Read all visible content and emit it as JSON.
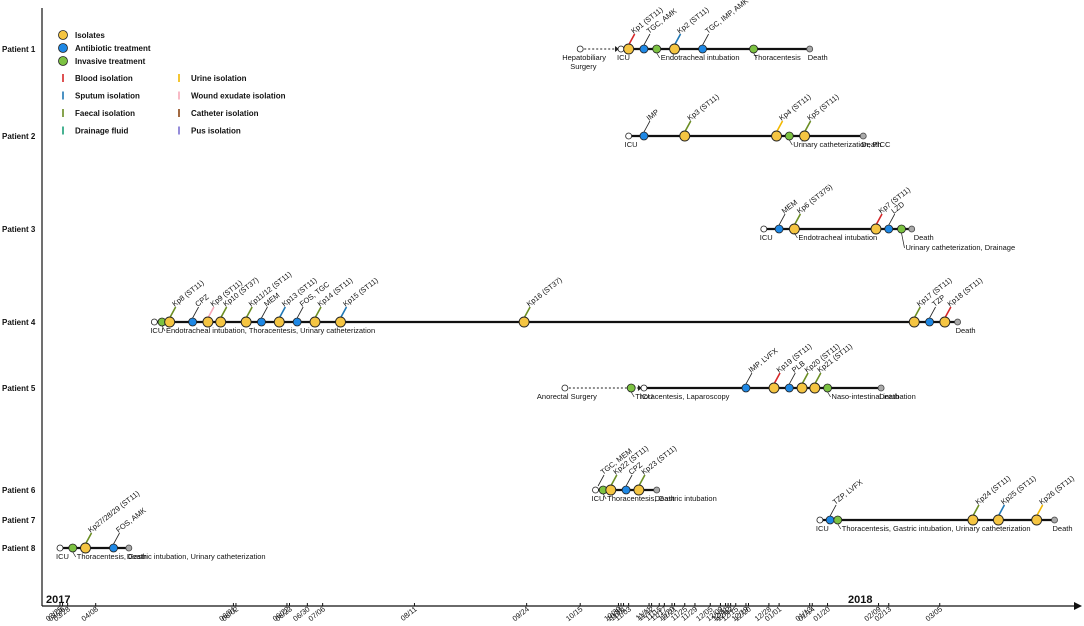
{
  "years": [
    "2017",
    "2018"
  ],
  "axis_dates": [
    {
      "d": "03/25",
      "v": 0
    },
    {
      "d": "03/26",
      "v": 1
    },
    {
      "d": "03/28",
      "v": 3
    },
    {
      "d": "04/08",
      "v": 14
    },
    {
      "d": "06/01",
      "v": 68
    },
    {
      "d": "06/02",
      "v": 69
    },
    {
      "d": "06/22",
      "v": 89
    },
    {
      "d": "06/23",
      "v": 90
    },
    {
      "d": "06/30",
      "v": 97
    },
    {
      "d": "07/06",
      "v": 103
    },
    {
      "d": "08/11",
      "v": 139
    },
    {
      "d": "09/24",
      "v": 183
    },
    {
      "d": "10/15",
      "v": 204
    },
    {
      "d": "10/31",
      "v": 220
    },
    {
      "d": "10/30",
      "v": 219
    },
    {
      "d": "11/01",
      "v": 221
    },
    {
      "d": "11/03",
      "v": 223
    },
    {
      "d": "11/11",
      "v": 231
    },
    {
      "d": "11/12",
      "v": 232
    },
    {
      "d": "11/15",
      "v": 235
    },
    {
      "d": "11/17",
      "v": 237
    },
    {
      "d": "11/20",
      "v": 240
    },
    {
      "d": "11/21",
      "v": 241
    },
    {
      "d": "11/25",
      "v": 245
    },
    {
      "d": "11/29",
      "v": 249
    },
    {
      "d": "12/05",
      "v": 255
    },
    {
      "d": "12/09",
      "v": 259
    },
    {
      "d": "12/11",
      "v": 261
    },
    {
      "d": "12/12",
      "v": 262
    },
    {
      "d": "12/13",
      "v": 263
    },
    {
      "d": "12/15",
      "v": 265
    },
    {
      "d": "12/19",
      "v": 269
    },
    {
      "d": "12/20",
      "v": 270
    },
    {
      "d": "12/28",
      "v": 278
    },
    {
      "d": "01/01",
      "v": 282
    },
    {
      "d": "01/13",
      "v": 294
    },
    {
      "d": "01/14",
      "v": 295
    },
    {
      "d": "01/20",
      "v": 301
    },
    {
      "d": "02/09",
      "v": 321
    },
    {
      "d": "02/13",
      "v": 325
    },
    {
      "d": "03/05",
      "v": 345
    }
  ],
  "legend": {
    "isolates": "Isolates",
    "antibiotic": "Antibiotic treatment",
    "invasive": "Invasive treatment",
    "sources": [
      {
        "label": "Blood isolation",
        "color": "#d62728"
      },
      {
        "label": "Urine isolation",
        "color": "#f2b800"
      },
      {
        "label": "Sputum isolation",
        "color": "#1f77b4"
      },
      {
        "label": "Wound exudate isolation",
        "color": "#f7a8b8"
      },
      {
        "label": "Faecal isolation",
        "color": "#6b8e23"
      },
      {
        "label": "Catheter isolation",
        "color": "#8b4513"
      },
      {
        "label": "Drainage fluid",
        "color": "#1a9e77"
      },
      {
        "label": "Pus isolation",
        "color": "#7b6fd0"
      }
    ]
  },
  "colors": {
    "isolate": "#f5c542",
    "antibiotic": "#1e88e5",
    "invasive": "#7cc242",
    "death": "#aaaaaa"
  },
  "patients": [
    {
      "name": "Patient 1",
      "events": [
        {
          "t": "open",
          "v": 204
        },
        {
          "t": "open",
          "v": 220
        },
        {
          "t": "iso",
          "v": 223
        },
        {
          "t": "abx",
          "v": 229
        },
        {
          "t": "inv",
          "v": 234
        },
        {
          "t": "iso",
          "v": 241
        },
        {
          "t": "abx",
          "v": 252
        },
        {
          "t": "inv",
          "v": 272
        },
        {
          "t": "death",
          "v": 294
        }
      ],
      "labels": [
        {
          "text": "Kp1 (ST11)",
          "v": 223,
          "c": "#d62728"
        },
        {
          "text": "TGC, AMK",
          "v": 229
        },
        {
          "text": "Kp2 (ST11)",
          "v": 241,
          "c": "#1f77b4"
        },
        {
          "text": "TGC, IMP, AMK",
          "v": 252
        }
      ],
      "below": [
        {
          "text": "Hepatobiliary",
          "v": 204,
          "dx": -18
        },
        {
          "text": "Surgery",
          "v": 204,
          "dx": -10,
          "dy": 9
        },
        {
          "text": "ICU",
          "v": 220,
          "dx": -4
        },
        {
          "text": "Endotracheal intubation",
          "v": 234,
          "dx": 4,
          "line": true
        },
        {
          "text": "Thoracentesis",
          "v": 272,
          "dx": 0,
          "line": true
        },
        {
          "text": "Death",
          "v": 294,
          "dx": -2
        }
      ]
    },
    {
      "name": "Patient 2",
      "events": [
        {
          "t": "open",
          "v": 223
        },
        {
          "t": "abx",
          "v": 229
        },
        {
          "t": "iso",
          "v": 245
        },
        {
          "t": "iso",
          "v": 281
        },
        {
          "t": "inv",
          "v": 286
        },
        {
          "t": "iso",
          "v": 292
        },
        {
          "t": "death",
          "v": 315
        }
      ],
      "labels": [
        {
          "text": "IMP",
          "v": 229
        },
        {
          "text": "Kp3 (ST11)",
          "v": 245,
          "c": "#6b8e23"
        },
        {
          "text": "Kp4 (ST11)",
          "v": 281,
          "c": "#f2b800"
        },
        {
          "text": "Kp5 (ST11)",
          "v": 292,
          "c": "#6b8e23"
        }
      ],
      "below": [
        {
          "text": "ICU",
          "v": 223,
          "dx": -4
        },
        {
          "text": "Urinary catheterization, PICC",
          "v": 286,
          "dx": 4,
          "line": true
        },
        {
          "text": "Death",
          "v": 315,
          "dx": -2
        }
      ]
    },
    {
      "name": "Patient 3",
      "events": [
        {
          "t": "open",
          "v": 276
        },
        {
          "t": "abx",
          "v": 282
        },
        {
          "t": "iso",
          "v": 288
        },
        {
          "t": "iso",
          "v": 320
        },
        {
          "t": "abx",
          "v": 325
        },
        {
          "t": "inv",
          "v": 330
        },
        {
          "t": "death",
          "v": 334
        }
      ],
      "labels": [
        {
          "text": "MEM",
          "v": 282
        },
        {
          "text": "Kp6 (ST375)",
          "v": 288,
          "c": "#6b8e23"
        },
        {
          "text": "Kp7 (ST11)",
          "v": 320,
          "c": "#d62728"
        },
        {
          "text": "LZD",
          "v": 325
        }
      ],
      "below": [
        {
          "text": "ICU",
          "v": 276,
          "dx": -4
        },
        {
          "text": "Endotracheal intubation",
          "v": 288,
          "dx": 4,
          "line": true
        },
        {
          "text": "Death",
          "v": 334,
          "dx": 2
        },
        {
          "text": "Urinary catheterization, Drainage",
          "v": 330,
          "dx": 4,
          "dy": 10,
          "line": true
        }
      ]
    },
    {
      "name": "Patient 4",
      "events": [
        {
          "t": "open",
          "v": 37
        },
        {
          "t": "inv",
          "v": 40
        },
        {
          "t": "iso",
          "v": 43
        },
        {
          "t": "abx",
          "v": 52
        },
        {
          "t": "iso",
          "v": 58
        },
        {
          "t": "iso",
          "v": 63
        },
        {
          "t": "iso",
          "v": 73
        },
        {
          "t": "abx",
          "v": 79
        },
        {
          "t": "iso",
          "v": 86
        },
        {
          "t": "abx",
          "v": 93
        },
        {
          "t": "iso",
          "v": 100
        },
        {
          "t": "iso",
          "v": 110
        },
        {
          "t": "iso",
          "v": 182
        },
        {
          "t": "iso",
          "v": 335
        },
        {
          "t": "abx",
          "v": 341
        },
        {
          "t": "iso",
          "v": 347
        },
        {
          "t": "death",
          "v": 352
        }
      ],
      "labels": [
        {
          "text": "Kp8 (ST11)",
          "v": 43,
          "c": "#6b8e23"
        },
        {
          "text": "CPZ",
          "v": 52
        },
        {
          "text": "Kp9 (ST11)",
          "v": 58,
          "c": "#f7a8b8"
        },
        {
          "text": "Kp10 (ST37)",
          "v": 63,
          "c": "#6b8e23"
        },
        {
          "text": "Kp11/12 (ST11)",
          "v": 73,
          "c": "#6b8e23"
        },
        {
          "text": "MEM",
          "v": 79
        },
        {
          "text": "Kp13 (ST11)",
          "v": 86,
          "c": "#1f77b4"
        },
        {
          "text": "FOS, TGC",
          "v": 93
        },
        {
          "text": "Kp14 (ST11)",
          "v": 100,
          "c": "#6b8e23"
        },
        {
          "text": "Kp15 (ST11)",
          "v": 110,
          "c": "#1f77b4"
        },
        {
          "text": "Kp16 (ST37)",
          "v": 182,
          "c": "#6b8e23"
        },
        {
          "text": "Kp17 (ST11)",
          "v": 335,
          "c": "#6b8e23"
        },
        {
          "text": "TZP",
          "v": 341
        },
        {
          "text": "Kp18 (ST11)",
          "v": 347,
          "c": "#d62728"
        }
      ],
      "below": [
        {
          "text": "ICU",
          "v": 37,
          "dx": -4
        },
        {
          "text": "Endotracheal intubation, Thoracentesis, Urinary catheterization",
          "v": 40,
          "dx": 4,
          "line": true
        },
        {
          "text": "Death",
          "v": 352,
          "dx": -2
        }
      ]
    },
    {
      "name": "Patient 5",
      "events": [
        {
          "t": "open",
          "v": 198
        },
        {
          "t": "inv",
          "v": 224
        },
        {
          "t": "open",
          "v": 229
        },
        {
          "t": "abx",
          "v": 269
        },
        {
          "t": "iso",
          "v": 280
        },
        {
          "t": "abx",
          "v": 286
        },
        {
          "t": "iso",
          "v": 291
        },
        {
          "t": "iso",
          "v": 296
        },
        {
          "t": "inv",
          "v": 301
        },
        {
          "t": "death",
          "v": 322
        }
      ],
      "labels": [
        {
          "text": "IMP, LVFX",
          "v": 269
        },
        {
          "text": "Kp19 (ST11)",
          "v": 280,
          "c": "#d62728"
        },
        {
          "text": "PLB",
          "v": 286
        },
        {
          "text": "Kp20 (ST11)",
          "v": 291,
          "c": "#6b8e23"
        },
        {
          "text": "Kp21 (ST11)",
          "v": 296,
          "c": "#6b8e23"
        }
      ],
      "below": [
        {
          "text": "Anorectal Surgery",
          "v": 198,
          "dx": -28
        },
        {
          "text": "ICU",
          "v": 229,
          "dx": -4
        },
        {
          "text": "Thoracentesis, Laparoscopy",
          "v": 224,
          "dx": 4,
          "line": true
        },
        {
          "text": "Naso-intestinal intubation",
          "v": 301,
          "dx": 4,
          "line": true
        },
        {
          "text": "Death",
          "v": 322,
          "dx": -2
        }
      ]
    },
    {
      "name": "Patient 6",
      "events": [
        {
          "t": "open",
          "v": 210
        },
        {
          "t": "inv",
          "v": 213
        },
        {
          "t": "iso",
          "v": 216
        },
        {
          "t": "abx",
          "v": 222
        },
        {
          "t": "iso",
          "v": 227
        },
        {
          "t": "death",
          "v": 234
        }
      ],
      "labels": [
        {
          "text": "TGC, MEM",
          "v": 211
        },
        {
          "text": "Kp22 (ST11)",
          "v": 216,
          "c": "#6b8e23"
        },
        {
          "text": "CPZ",
          "v": 222
        },
        {
          "text": "Kp23 (ST11)",
          "v": 227,
          "c": "#6b8e23"
        }
      ],
      "below": [
        {
          "text": "ICU",
          "v": 210,
          "dx": -4
        },
        {
          "text": "Death",
          "v": 234,
          "dx": -2
        },
        {
          "text": "Thoracentesis, Gastric intubation",
          "v": 213,
          "dx": 4,
          "line": true
        }
      ]
    },
    {
      "name": "Patient 7",
      "events": [
        {
          "t": "open",
          "v": 298
        },
        {
          "t": "abx",
          "v": 302
        },
        {
          "t": "inv",
          "v": 305
        },
        {
          "t": "iso",
          "v": 358
        },
        {
          "t": "iso",
          "v": 368
        },
        {
          "t": "iso",
          "v": 383
        },
        {
          "t": "death",
          "v": 390
        }
      ],
      "labels": [
        {
          "text": "TZP, LVFX",
          "v": 302
        },
        {
          "text": "Kp24 (ST11)",
          "v": 358,
          "c": "#6b8e23"
        },
        {
          "text": "Kp25 (ST11)",
          "v": 368,
          "c": "#1f77b4"
        },
        {
          "text": "Kp26 (ST11)",
          "v": 383,
          "c": "#f2b800"
        }
      ],
      "below": [
        {
          "text": "ICU",
          "v": 298,
          "dx": -4
        },
        {
          "text": "Thoracentesis, Gastric intubation, Urinary catheterization",
          "v": 305,
          "dx": 4,
          "line": true
        },
        {
          "text": "Death",
          "v": 390,
          "dx": -2
        }
      ]
    },
    {
      "name": "Patient 8",
      "events": [
        {
          "t": "open",
          "v": 0
        },
        {
          "t": "inv",
          "v": 5
        },
        {
          "t": "iso",
          "v": 10
        },
        {
          "t": "abx",
          "v": 21
        },
        {
          "t": "death",
          "v": 27
        }
      ],
      "labels": [
        {
          "text": "Kp27/28/29 (ST11)",
          "v": 10,
          "c": "#6b8e23"
        },
        {
          "text": "FOS, AMK",
          "v": 21
        }
      ],
      "below": [
        {
          "text": "ICU",
          "v": 0,
          "dx": -4
        },
        {
          "text": "Thoracentesis, Gastric intubation, Urinary catheterization",
          "v": 5,
          "dx": 4,
          "line": true
        },
        {
          "text": "Death",
          "v": 27,
          "dx": -2
        }
      ]
    }
  ]
}
